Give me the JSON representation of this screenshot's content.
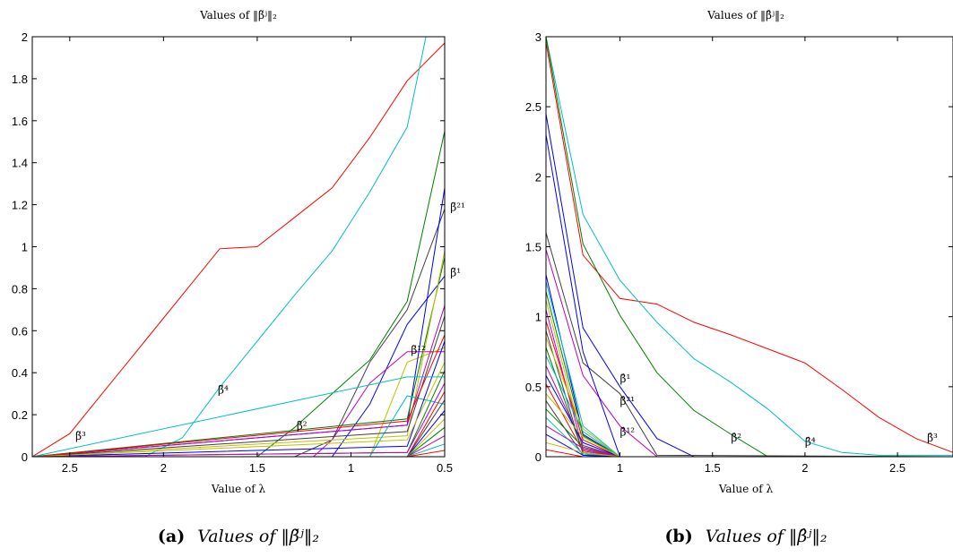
{
  "chart_data": [
    {
      "type": "line",
      "title": "Values of ‖β̃ʲ‖₂",
      "xlabel": "Value of λ",
      "ylabel": "",
      "xlim": [
        2.7,
        0.5
      ],
      "ylim": [
        0,
        2
      ],
      "x_reversed": true,
      "xticks": [
        2.5,
        2,
        1.5,
        1,
        0.5
      ],
      "xtick_labels": [
        "2.5",
        "2",
        "1.5",
        "1",
        "0.5"
      ],
      "yticks": [
        0,
        0.2,
        0.4,
        0.6,
        0.8,
        1,
        1.2,
        1.4,
        1.6,
        1.8,
        2
      ],
      "ytick_labels": [
        "0",
        "0.2",
        "0.4",
        "0.6",
        "0.8",
        "1",
        "1.2",
        "1.4",
        "1.6",
        "1.8",
        "2"
      ],
      "grid": false,
      "caption_letter": "(a)",
      "caption_text": "Values of ‖β̃ʲ‖₂",
      "series": [
        {
          "color": "#ff0000",
          "x": [
            2.7,
            2.5,
            2.3,
            2.1,
            1.9,
            1.7,
            1.5,
            1.3,
            1.1,
            0.9,
            0.7,
            0.5
          ],
          "values": [
            0,
            0.11,
            0.33,
            0.55,
            0.77,
            0.99,
            1.0,
            1.14,
            1.28,
            1.52,
            1.79,
            1.97
          ]
        },
        {
          "color": "#00bfbf",
          "x": [
            2.7,
            2.1,
            1.9,
            1.7,
            1.5,
            1.3,
            1.1,
            0.9,
            0.7,
            0.6
          ],
          "values": [
            0,
            0,
            0.09,
            0.33,
            0.55,
            0.77,
            0.98,
            1.26,
            1.57,
            2.0
          ]
        },
        {
          "color": "#007f00",
          "x": [
            2.7,
            1.5,
            1.3,
            1.1,
            0.9,
            0.7,
            0.5
          ],
          "values": [
            0,
            0,
            0.14,
            0.3,
            0.46,
            0.74,
            1.55
          ]
        },
        {
          "color": "#404040",
          "x": [
            2.7,
            1.3,
            1.1,
            0.9,
            0.7,
            0.5
          ],
          "values": [
            0,
            0,
            0.08,
            0.45,
            0.7,
            1.18
          ]
        },
        {
          "color": "#0000ff",
          "x": [
            2.7,
            1.1,
            0.9,
            0.7,
            0.5
          ],
          "values": [
            0,
            0,
            0.25,
            0.63,
            0.86
          ]
        },
        {
          "color": "#bf00bf",
          "x": [
            2.7,
            1.2,
            1.1,
            0.9,
            0.7,
            0.5
          ],
          "values": [
            0,
            0,
            0.08,
            0.35,
            0.5,
            0.5
          ]
        },
        {
          "color": "#bfbf00",
          "x": [
            2.7,
            0.9,
            0.7,
            0.5
          ],
          "values": [
            0,
            0,
            0.45,
            0.52
          ]
        },
        {
          "color": "#0000ff",
          "x": [
            2.7,
            0.7,
            0.5
          ],
          "values": [
            0,
            0.15,
            1.28
          ]
        },
        {
          "color": "#007f00",
          "x": [
            2.7,
            0.7,
            0.5
          ],
          "values": [
            0,
            0.18,
            0.95
          ]
        },
        {
          "color": "#bfbf00",
          "x": [
            2.7,
            0.7,
            0.5
          ],
          "values": [
            0,
            0.1,
            0.98
          ]
        },
        {
          "color": "#bf00bf",
          "x": [
            2.7,
            0.7,
            0.5
          ],
          "values": [
            0,
            0.15,
            0.72
          ]
        },
        {
          "color": "#00bfbf",
          "x": [
            2.7,
            0.9,
            0.7,
            0.5
          ],
          "values": [
            0,
            0,
            0.29,
            0.25
          ]
        },
        {
          "color": "#404040",
          "x": [
            2.7,
            0.7,
            0.5
          ],
          "values": [
            0,
            0.12,
            0.67
          ]
        },
        {
          "color": "#ff0000",
          "x": [
            2.7,
            0.7,
            0.5
          ],
          "values": [
            0,
            0.17,
            0.58
          ]
        },
        {
          "color": "#0000ff",
          "x": [
            2.7,
            0.7,
            0.5
          ],
          "values": [
            0,
            0.05,
            0.55
          ]
        },
        {
          "color": "#bfbf00",
          "x": [
            2.7,
            0.7,
            0.5
          ],
          "values": [
            0,
            0.08,
            0.45
          ]
        },
        {
          "color": "#007f00",
          "x": [
            2.7,
            0.7,
            0.5
          ],
          "values": [
            0,
            0.02,
            0.41
          ]
        },
        {
          "color": "#bf00bf",
          "x": [
            2.7,
            0.7,
            0.5
          ],
          "values": [
            0,
            0.02,
            0.35
          ]
        },
        {
          "color": "#00bfbf",
          "x": [
            2.7,
            0.7,
            0.5
          ],
          "values": [
            0,
            0.38,
            0.38
          ]
        },
        {
          "color": "#ff0000",
          "x": [
            2.7,
            0.7,
            0.5
          ],
          "values": [
            0,
            0.0,
            0.31
          ]
        },
        {
          "color": "#404040",
          "x": [
            2.7,
            0.7,
            0.5
          ],
          "values": [
            0,
            0.0,
            0.27
          ]
        },
        {
          "color": "#0000ff",
          "x": [
            2.7,
            0.7,
            0.5
          ],
          "values": [
            0,
            0.0,
            0.22
          ]
        },
        {
          "color": "#bfbf00",
          "x": [
            2.7,
            0.7,
            0.5
          ],
          "values": [
            0,
            0.0,
            0.18
          ]
        },
        {
          "color": "#007f00",
          "x": [
            2.7,
            0.7,
            0.5
          ],
          "values": [
            0,
            0.0,
            0.14
          ]
        },
        {
          "color": "#bf00bf",
          "x": [
            2.7,
            0.7,
            0.5
          ],
          "values": [
            0,
            0.0,
            0.1
          ]
        },
        {
          "color": "#00bfbf",
          "x": [
            2.7,
            0.7,
            0.5
          ],
          "values": [
            0,
            0.0,
            0.06
          ]
        },
        {
          "color": "#ff0000",
          "x": [
            2.7,
            0.7,
            0.5
          ],
          "values": [
            0,
            0.0,
            0.03
          ]
        }
      ],
      "annotations": [
        {
          "text": "β̃³",
          "x": 2.47,
          "y": 0.08
        },
        {
          "text": "β̃⁴",
          "x": 1.71,
          "y": 0.3
        },
        {
          "text": "β̃²",
          "x": 1.29,
          "y": 0.13
        },
        {
          "text": "β̃¹²",
          "x": 0.68,
          "y": 0.49
        },
        {
          "text": "β̃²¹",
          "x": 0.47,
          "y": 1.17
        },
        {
          "text": "β̃¹",
          "x": 0.47,
          "y": 0.86
        }
      ]
    },
    {
      "type": "line",
      "title": "Values of ‖β̂ʲ‖₂",
      "xlabel": "Value of λ",
      "ylabel": "",
      "xlim": [
        0.6,
        2.8
      ],
      "ylim": [
        0,
        3
      ],
      "xticks": [
        1,
        1.5,
        2,
        2.5
      ],
      "xtick_labels": [
        "1",
        "1.5",
        "2",
        "2.5"
      ],
      "yticks": [
        0,
        0.5,
        1,
        1.5,
        2,
        2.5,
        3
      ],
      "ytick_labels": [
        "0",
        "0.5",
        "1",
        "1.5",
        "2",
        "2.5",
        "3"
      ],
      "grid": false,
      "caption_letter": "(b)",
      "caption_text": "Values of ‖β̂ʲ‖₂",
      "series": [
        {
          "color": "#ff0000",
          "x": [
            0.6,
            0.8,
            1.0,
            1.2,
            1.4,
            1.6,
            1.8,
            2.0,
            2.2,
            2.4,
            2.6,
            2.8
          ],
          "values": [
            2.96,
            1.44,
            1.13,
            1.09,
            0.96,
            0.87,
            0.77,
            0.67,
            0.48,
            0.28,
            0.13,
            0.03
          ]
        },
        {
          "color": "#00bfbf",
          "x": [
            0.6,
            0.8,
            1.0,
            1.2,
            1.4,
            1.6,
            1.8,
            2.0,
            2.2,
            2.4,
            2.8
          ],
          "values": [
            3.0,
            1.73,
            1.26,
            0.96,
            0.7,
            0.53,
            0.34,
            0.11,
            0.03,
            0.01,
            0.01
          ]
        },
        {
          "color": "#007f00",
          "x": [
            0.6,
            0.8,
            1.0,
            1.2,
            1.4,
            1.6,
            1.8,
            2.8
          ],
          "values": [
            3.0,
            1.52,
            1.01,
            0.6,
            0.33,
            0.16,
            0.0,
            0.0
          ]
        },
        {
          "color": "#0000ff",
          "x": [
            0.6,
            0.8,
            1.0,
            1.2,
            1.4,
            2.8
          ],
          "values": [
            2.45,
            0.92,
            0.5,
            0.13,
            0.0,
            0.0
          ]
        },
        {
          "color": "#404040",
          "x": [
            0.6,
            0.8,
            1.0,
            1.2,
            2.8
          ],
          "values": [
            1.6,
            0.67,
            0.45,
            0.01,
            0.0
          ]
        },
        {
          "color": "#bf00bf",
          "x": [
            0.6,
            0.8,
            1.0,
            1.2,
            2.8
          ],
          "values": [
            1.48,
            0.58,
            0.22,
            0.0,
            0.0
          ]
        },
        {
          "color": "#0000ff",
          "x": [
            0.6,
            0.8,
            1.0,
            2.8
          ],
          "values": [
            2.3,
            0.75,
            0.0,
            0.0
          ]
        },
        {
          "color": "#0000ff",
          "x": [
            0.6,
            0.8,
            1.0,
            2.8
          ],
          "values": [
            1.3,
            0.16,
            0.0,
            0.0
          ]
        },
        {
          "color": "#00bfbf",
          "x": [
            0.6,
            0.8,
            1.0,
            2.8
          ],
          "values": [
            1.25,
            0.22,
            0.0,
            0.0
          ]
        },
        {
          "color": "#007f00",
          "x": [
            0.6,
            0.8,
            1.0,
            2.8
          ],
          "values": [
            1.18,
            0.15,
            0.0,
            0.0
          ]
        },
        {
          "color": "#bfbf00",
          "x": [
            0.6,
            0.8,
            1.0,
            2.8
          ],
          "values": [
            1.12,
            0.1,
            0.0,
            0.0
          ]
        },
        {
          "color": "#bf00bf",
          "x": [
            0.6,
            0.8,
            1.0,
            2.8
          ],
          "values": [
            1.05,
            0.05,
            0.0,
            0.0
          ]
        },
        {
          "color": "#ff0000",
          "x": [
            0.6,
            0.8,
            1.0,
            2.8
          ],
          "values": [
            0.97,
            0.12,
            0.0,
            0.0
          ]
        },
        {
          "color": "#404040",
          "x": [
            0.6,
            0.8,
            1.0,
            2.8
          ],
          "values": [
            0.9,
            0.02,
            0.0,
            0.0
          ]
        },
        {
          "color": "#bfbf00",
          "x": [
            0.6,
            0.8,
            1.0,
            2.8
          ],
          "values": [
            0.85,
            0.2,
            0.0,
            0.0
          ]
        },
        {
          "color": "#007f00",
          "x": [
            0.6,
            0.8,
            1.0,
            2.8
          ],
          "values": [
            0.78,
            0.03,
            0.0,
            0.0
          ]
        },
        {
          "color": "#00bfbf",
          "x": [
            0.6,
            0.8,
            1.0,
            2.8
          ],
          "values": [
            0.72,
            0.18,
            0.0,
            0.0
          ]
        },
        {
          "color": "#bf00bf",
          "x": [
            0.6,
            0.8,
            1.0,
            2.8
          ],
          "values": [
            0.65,
            0.08,
            0.0,
            0.0
          ]
        },
        {
          "color": "#0000ff",
          "x": [
            0.6,
            0.8,
            1.0,
            2.8
          ],
          "values": [
            0.58,
            0.1,
            0.0,
            0.0
          ]
        },
        {
          "color": "#ff0000",
          "x": [
            0.6,
            0.8,
            1.0,
            2.8
          ],
          "values": [
            0.52,
            0.04,
            0.0,
            0.0
          ]
        },
        {
          "color": "#bfbf00",
          "x": [
            0.6,
            0.8,
            1.0,
            2.8
          ],
          "values": [
            0.45,
            0.14,
            0.0,
            0.0
          ]
        },
        {
          "color": "#404040",
          "x": [
            0.6,
            0.8,
            1.0,
            2.8
          ],
          "values": [
            0.4,
            0.01,
            0.0,
            0.0
          ]
        },
        {
          "color": "#007f00",
          "x": [
            0.6,
            0.8,
            1.0,
            2.8
          ],
          "values": [
            0.34,
            0.07,
            0.0,
            0.0
          ]
        },
        {
          "color": "#00bfbf",
          "x": [
            0.6,
            0.8,
            1.0,
            2.8
          ],
          "values": [
            0.28,
            0.02,
            0.0,
            0.0
          ]
        },
        {
          "color": "#bf00bf",
          "x": [
            0.6,
            0.8,
            1.0,
            2.8
          ],
          "values": [
            0.22,
            0.06,
            0.0,
            0.0
          ]
        },
        {
          "color": "#0000ff",
          "x": [
            0.6,
            0.8,
            1.0,
            2.8
          ],
          "values": [
            0.16,
            0.01,
            0.0,
            0.0
          ]
        },
        {
          "color": "#bfbf00",
          "x": [
            0.6,
            0.8,
            1.0,
            2.8
          ],
          "values": [
            0.1,
            0.03,
            0.0,
            0.0
          ]
        },
        {
          "color": "#ff0000",
          "x": [
            0.6,
            0.8,
            1.0,
            2.8
          ],
          "values": [
            0.05,
            0.0,
            0.0,
            0.0
          ]
        }
      ],
      "annotations": [
        {
          "text": "β̂¹",
          "x": 1.0,
          "y": 0.53
        },
        {
          "text": "β̂²¹",
          "x": 1.0,
          "y": 0.37
        },
        {
          "text": "β̂¹²",
          "x": 1.0,
          "y": 0.15
        },
        {
          "text": "β̂²",
          "x": 1.6,
          "y": 0.11
        },
        {
          "text": "β̂⁴",
          "x": 2.0,
          "y": 0.08
        },
        {
          "text": "β̂³",
          "x": 2.66,
          "y": 0.11
        }
      ]
    }
  ]
}
